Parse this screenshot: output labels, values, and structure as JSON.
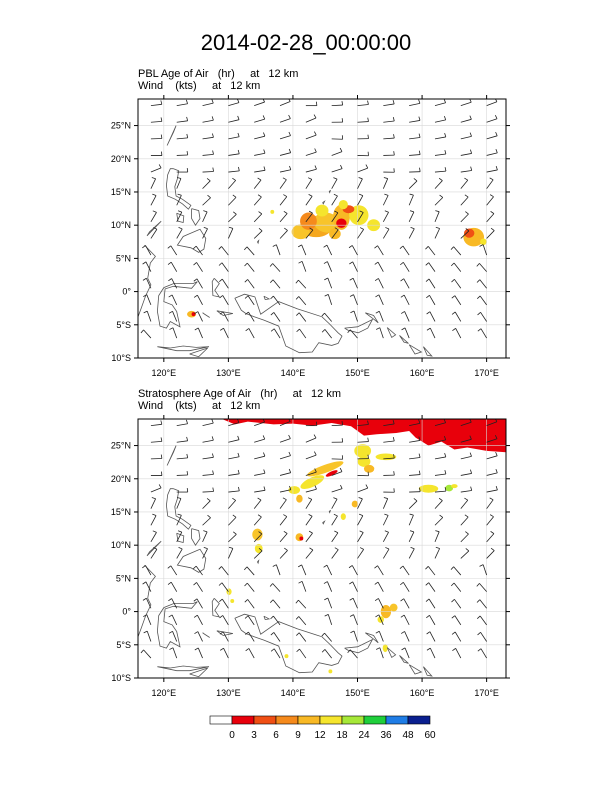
{
  "title": "2014-02-28_00:00:00",
  "panels": [
    {
      "id": "pbl",
      "line1": "PBL Age of Air   (hr)     at   12 km",
      "line2": "Wind    (kts)     at   12 km"
    },
    {
      "id": "strat",
      "line1": "Stratosphere Age of Air   (hr)     at   12 km",
      "line2": "Wind    (kts)     at   12 km"
    }
  ],
  "map": {
    "lon_range": [
      116,
      173
    ],
    "lat_range": [
      -10,
      29
    ],
    "lon_ticks": [
      {
        "v": 120,
        "label": "120°E"
      },
      {
        "v": 130,
        "label": "130°E"
      },
      {
        "v": 140,
        "label": "140°E"
      },
      {
        "v": 150,
        "label": "150°E"
      },
      {
        "v": 160,
        "label": "160°E"
      },
      {
        "v": 170,
        "label": "170°E"
      }
    ],
    "lat_ticks": [
      {
        "v": 25,
        "label": "25°N"
      },
      {
        "v": 20,
        "label": "20°N"
      },
      {
        "v": 15,
        "label": "15°N"
      },
      {
        "v": 10,
        "label": "10°N"
      },
      {
        "v": 5,
        "label": "5°N"
      },
      {
        "v": 0,
        "label": "0°"
      },
      {
        "v": -5,
        "label": "5°S"
      },
      {
        "v": -10,
        "label": "10°S"
      }
    ]
  },
  "colorbar": {
    "labels": [
      "0",
      "3",
      "6",
      "9",
      "12",
      "18",
      "24",
      "36",
      "48",
      "60"
    ],
    "colors": [
      "#ffffff",
      "#e8000b",
      "#f04f14",
      "#f58a1c",
      "#f8b925",
      "#f5e52d",
      "#a6e838",
      "#1fcf3b",
      "#1f7de6",
      "#0a1f8f"
    ]
  }
}
